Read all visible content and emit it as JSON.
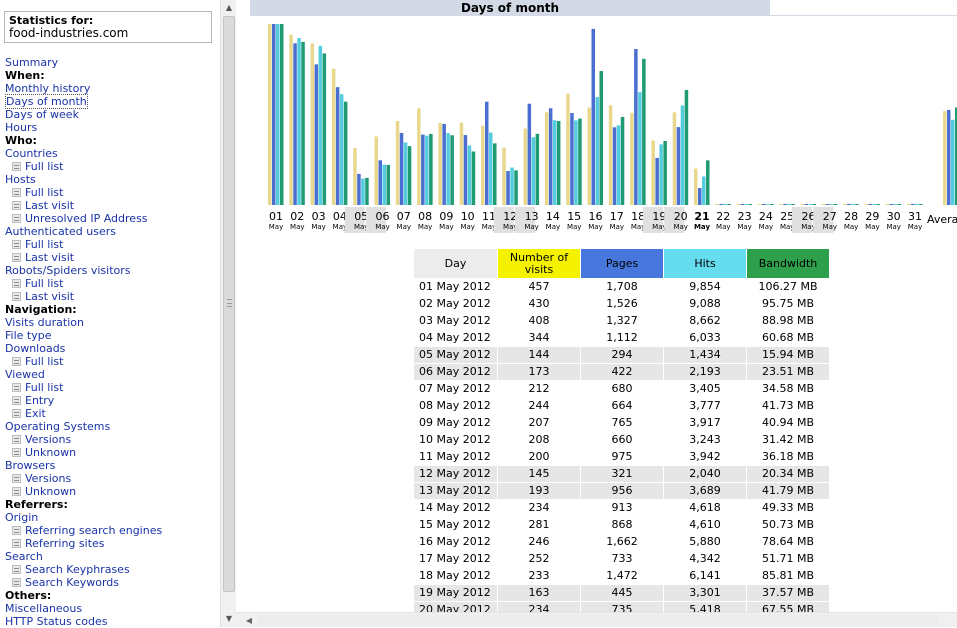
{
  "menu": {
    "stats_for_label": "Statistics for:",
    "site": "food-industries.com",
    "items": [
      {
        "type": "link",
        "label": "Summary"
      },
      {
        "type": "section",
        "label": "When:"
      },
      {
        "type": "link",
        "label": "Monthly history"
      },
      {
        "type": "link",
        "label": "Days of month",
        "active": true
      },
      {
        "type": "link",
        "label": "Days of week"
      },
      {
        "type": "link",
        "label": "Hours"
      },
      {
        "type": "section",
        "label": "Who:"
      },
      {
        "type": "link",
        "label": "Countries"
      },
      {
        "type": "sub",
        "label": "Full list"
      },
      {
        "type": "link",
        "label": "Hosts"
      },
      {
        "type": "sub",
        "label": "Full list"
      },
      {
        "type": "sub",
        "label": "Last visit"
      },
      {
        "type": "sub",
        "label": "Unresolved IP Address"
      },
      {
        "type": "link",
        "label": "Authenticated users"
      },
      {
        "type": "sub",
        "label": "Full list"
      },
      {
        "type": "sub",
        "label": "Last visit"
      },
      {
        "type": "link",
        "label": "Robots/Spiders visitors"
      },
      {
        "type": "sub",
        "label": "Full list"
      },
      {
        "type": "sub",
        "label": "Last visit"
      },
      {
        "type": "section",
        "label": "Navigation:"
      },
      {
        "type": "link",
        "label": "Visits duration"
      },
      {
        "type": "link",
        "label": "File type"
      },
      {
        "type": "link",
        "label": "Downloads"
      },
      {
        "type": "sub",
        "label": "Full list"
      },
      {
        "type": "link",
        "label": "Viewed"
      },
      {
        "type": "sub",
        "label": "Full list"
      },
      {
        "type": "sub",
        "label": "Entry"
      },
      {
        "type": "sub",
        "label": "Exit"
      },
      {
        "type": "link",
        "label": "Operating Systems"
      },
      {
        "type": "sub",
        "label": "Versions"
      },
      {
        "type": "sub",
        "label": "Unknown"
      },
      {
        "type": "link",
        "label": "Browsers"
      },
      {
        "type": "sub",
        "label": "Versions"
      },
      {
        "type": "sub",
        "label": "Unknown"
      },
      {
        "type": "section",
        "label": "Referrers:"
      },
      {
        "type": "link",
        "label": "Origin"
      },
      {
        "type": "sub",
        "label": "Referring search engines"
      },
      {
        "type": "sub",
        "label": "Referring sites"
      },
      {
        "type": "link",
        "label": "Search"
      },
      {
        "type": "sub",
        "label": "Search Keyphrases"
      },
      {
        "type": "sub",
        "label": "Search Keywords"
      },
      {
        "type": "section",
        "label": "Others:"
      },
      {
        "type": "link",
        "label": "Miscellaneous"
      },
      {
        "type": "link",
        "label": "HTTP Status codes"
      }
    ]
  },
  "main": {
    "title": "Days of month",
    "average_label": "Avera"
  },
  "colors": {
    "visits": "#e8d88e",
    "pages": "#4a6fd0",
    "hits": "#55ccdd",
    "bandwidth": "#1f9a72",
    "weekend_bg": "#e6e6e6"
  },
  "chart_data": {
    "type": "bar",
    "categories": [
      "01",
      "02",
      "03",
      "04",
      "05",
      "06",
      "07",
      "08",
      "09",
      "10",
      "11",
      "12",
      "13",
      "14",
      "15",
      "16",
      "17",
      "18",
      "19",
      "20",
      "21",
      "22",
      "23",
      "24",
      "25",
      "26",
      "27",
      "28",
      "29",
      "30",
      "31"
    ],
    "month_labels": [
      "May",
      "May",
      "May",
      "May",
      "May",
      "May",
      "May",
      "May",
      "May",
      "May",
      "May",
      "May",
      "May",
      "May",
      "May",
      "May",
      "May",
      "May",
      "May",
      "May",
      "May",
      "May",
      "May",
      "May",
      "May",
      "May",
      "May",
      "May",
      "May",
      "May",
      "May"
    ],
    "today_index": 20,
    "weekend_indices": [
      4,
      5,
      11,
      12,
      18,
      19,
      25,
      26
    ],
    "series": [
      {
        "key": "visits",
        "values": [
          457,
          430,
          408,
          344,
          144,
          173,
          212,
          244,
          207,
          208,
          200,
          145,
          193,
          234,
          281,
          246,
          252,
          233,
          163,
          234,
          92,
          0,
          0,
          0,
          0,
          0,
          0,
          0,
          0,
          0,
          0
        ]
      },
      {
        "key": "pages",
        "values": [
          1708,
          1526,
          1327,
          1112,
          294,
          422,
          680,
          664,
          765,
          660,
          975,
          321,
          956,
          913,
          868,
          1662,
          733,
          1472,
          445,
          735,
          160,
          0,
          0,
          0,
          0,
          0,
          0,
          0,
          0,
          0,
          0
        ]
      },
      {
        "key": "hits",
        "values": [
          9854,
          9088,
          8662,
          6033,
          1434,
          2193,
          3405,
          3777,
          3917,
          3243,
          3942,
          2040,
          3689,
          4618,
          4610,
          5880,
          4342,
          6141,
          3301,
          5418,
          1552,
          0,
          0,
          0,
          0,
          0,
          0,
          0,
          0,
          0,
          0
        ]
      },
      {
        "key": "bandwidth",
        "values": [
          106.27,
          95.75,
          88.98,
          60.68,
          15.94,
          23.51,
          34.58,
          41.73,
          40.94,
          31.42,
          36.18,
          20.34,
          41.79,
          49.33,
          50.73,
          78.64,
          51.71,
          85.81,
          37.57,
          67.55,
          26.2,
          0,
          0,
          0,
          0,
          0,
          0,
          0,
          0,
          0,
          0
        ]
      }
    ],
    "average": {
      "visits": 237,
      "pages": 897,
      "hits": 4643,
      "bandwidth": 57.3
    }
  },
  "table": {
    "headers": {
      "day": "Day",
      "visits": "Number of visits",
      "pages": "Pages",
      "hits": "Hits",
      "bandwidth": "Bandwidth"
    },
    "rows": [
      {
        "day": "01 May 2012",
        "visits": "457",
        "pages": "1,708",
        "hits": "9,854",
        "bw": "106.27 MB",
        "we": false
      },
      {
        "day": "02 May 2012",
        "visits": "430",
        "pages": "1,526",
        "hits": "9,088",
        "bw": "95.75 MB",
        "we": false
      },
      {
        "day": "03 May 2012",
        "visits": "408",
        "pages": "1,327",
        "hits": "8,662",
        "bw": "88.98 MB",
        "we": false
      },
      {
        "day": "04 May 2012",
        "visits": "344",
        "pages": "1,112",
        "hits": "6,033",
        "bw": "60.68 MB",
        "we": false
      },
      {
        "day": "05 May 2012",
        "visits": "144",
        "pages": "294",
        "hits": "1,434",
        "bw": "15.94 MB",
        "we": true
      },
      {
        "day": "06 May 2012",
        "visits": "173",
        "pages": "422",
        "hits": "2,193",
        "bw": "23.51 MB",
        "we": true
      },
      {
        "day": "07 May 2012",
        "visits": "212",
        "pages": "680",
        "hits": "3,405",
        "bw": "34.58 MB",
        "we": false
      },
      {
        "day": "08 May 2012",
        "visits": "244",
        "pages": "664",
        "hits": "3,777",
        "bw": "41.73 MB",
        "we": false
      },
      {
        "day": "09 May 2012",
        "visits": "207",
        "pages": "765",
        "hits": "3,917",
        "bw": "40.94 MB",
        "we": false
      },
      {
        "day": "10 May 2012",
        "visits": "208",
        "pages": "660",
        "hits": "3,243",
        "bw": "31.42 MB",
        "we": false
      },
      {
        "day": "11 May 2012",
        "visits": "200",
        "pages": "975",
        "hits": "3,942",
        "bw": "36.18 MB",
        "we": false
      },
      {
        "day": "12 May 2012",
        "visits": "145",
        "pages": "321",
        "hits": "2,040",
        "bw": "20.34 MB",
        "we": true
      },
      {
        "day": "13 May 2012",
        "visits": "193",
        "pages": "956",
        "hits": "3,689",
        "bw": "41.79 MB",
        "we": true
      },
      {
        "day": "14 May 2012",
        "visits": "234",
        "pages": "913",
        "hits": "4,618",
        "bw": "49.33 MB",
        "we": false
      },
      {
        "day": "15 May 2012",
        "visits": "281",
        "pages": "868",
        "hits": "4,610",
        "bw": "50.73 MB",
        "we": false
      },
      {
        "day": "16 May 2012",
        "visits": "246",
        "pages": "1,662",
        "hits": "5,880",
        "bw": "78.64 MB",
        "we": false
      },
      {
        "day": "17 May 2012",
        "visits": "252",
        "pages": "733",
        "hits": "4,342",
        "bw": "51.71 MB",
        "we": false
      },
      {
        "day": "18 May 2012",
        "visits": "233",
        "pages": "1,472",
        "hits": "6,141",
        "bw": "85.81 MB",
        "we": false
      },
      {
        "day": "19 May 2012",
        "visits": "163",
        "pages": "445",
        "hits": "3,301",
        "bw": "37.57 MB",
        "we": true
      },
      {
        "day": "20 May 2012",
        "visits": "234",
        "pages": "735",
        "hits": "5,418",
        "bw": "67.55 MB",
        "we": true
      }
    ]
  }
}
